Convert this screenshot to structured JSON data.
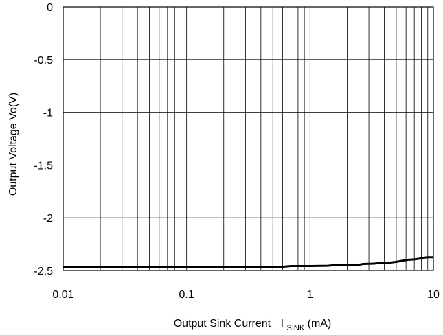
{
  "chart_data": {
    "type": "line",
    "xlabel": "Output Sink Current",
    "xlabel_symbol": "I",
    "xlabel_subscript": "SINK",
    "xlabel_unit": "(mA)",
    "ylabel": "Output Voltage  Vo(V)",
    "x_scale": "log",
    "xlim": [
      0.01,
      10
    ],
    "ylim": [
      -2.5,
      0
    ],
    "x_ticks": [
      0.01,
      0.1,
      1,
      10
    ],
    "x_tick_labels": [
      "0.01",
      "0.1",
      "1",
      "10"
    ],
    "y_ticks": [
      0,
      -0.5,
      -1,
      -1.5,
      -2,
      -2.5
    ],
    "y_tick_labels": [
      "0",
      "-0.5",
      "-1",
      "-1.5",
      "-2",
      "-2.5"
    ],
    "grid": true,
    "series": [
      {
        "color": "#000000",
        "x": [
          0.01,
          0.1,
          0.6,
          0.7,
          1.0,
          1.4,
          1.6,
          2.0,
          2.5,
          2.7,
          3.3,
          3.8,
          4.5,
          5.0,
          5.6,
          6.3,
          7.0,
          8.0,
          8.5,
          9.0,
          10.0
        ],
        "y": [
          -2.465,
          -2.465,
          -2.465,
          -2.458,
          -2.458,
          -2.455,
          -2.448,
          -2.448,
          -2.445,
          -2.438,
          -2.435,
          -2.428,
          -2.425,
          -2.418,
          -2.408,
          -2.398,
          -2.395,
          -2.385,
          -2.378,
          -2.375,
          -2.375
        ]
      }
    ]
  }
}
